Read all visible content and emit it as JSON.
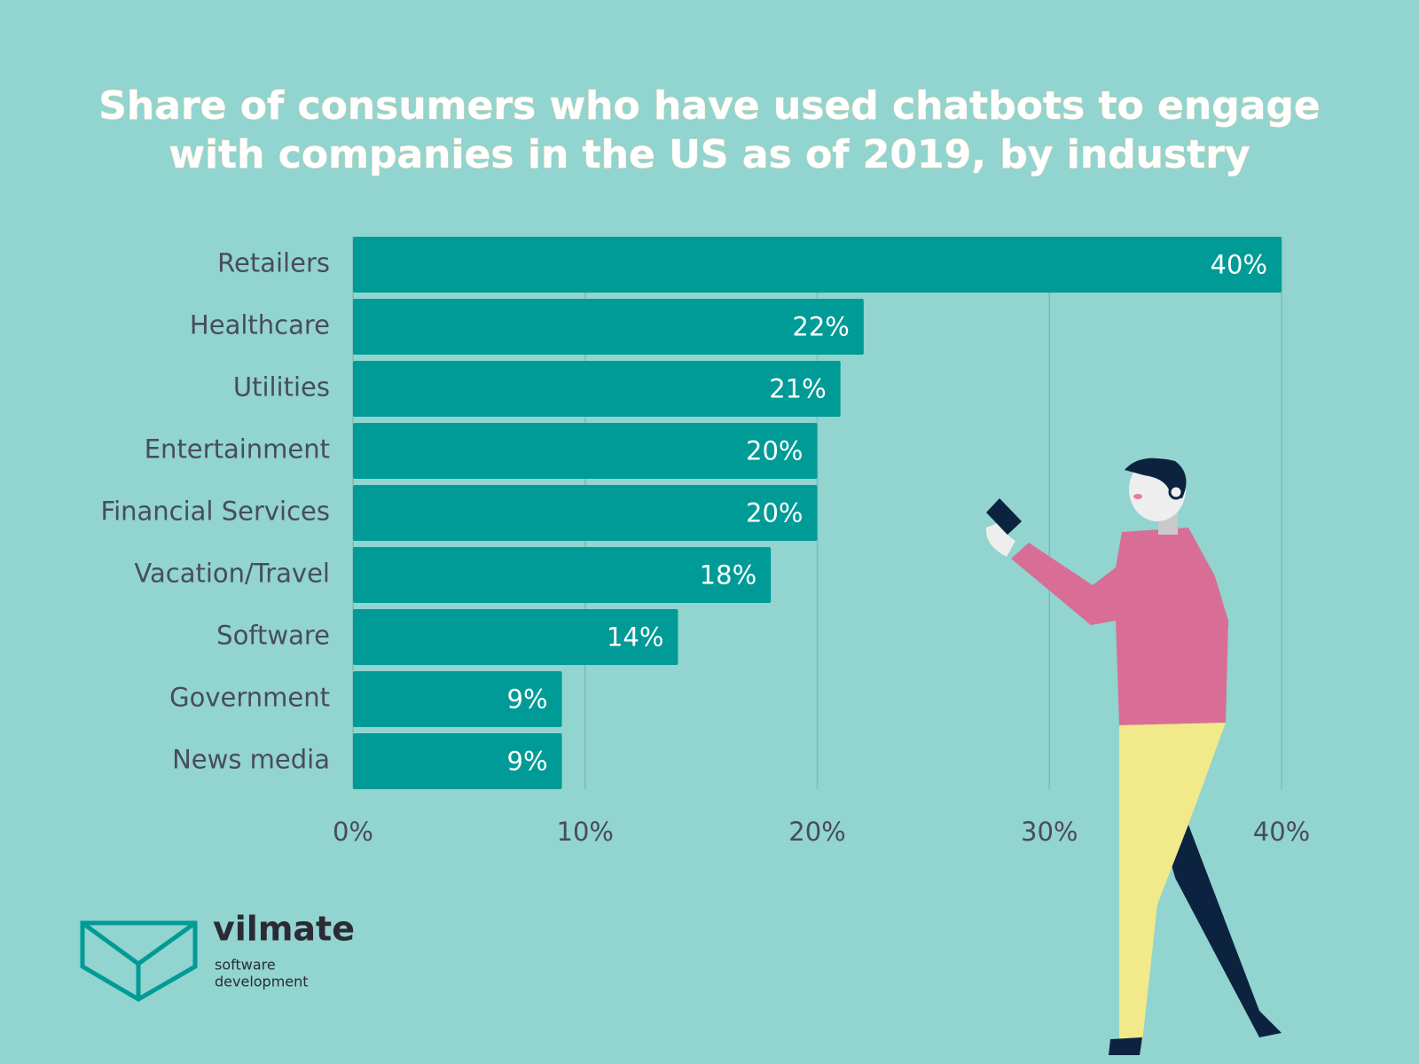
{
  "chart_data": {
    "type": "bar",
    "orientation": "horizontal",
    "title": [
      "Share of consumers who have used chatbots to engage",
      "with companies in the US as of 2019, by industry"
    ],
    "categories": [
      "Retailers",
      "Healthcare",
      "Utilities",
      "Entertainment",
      "Financial Services",
      "Vacation/Travel",
      "Software",
      "Government",
      "News media"
    ],
    "values": [
      40,
      22,
      21,
      20,
      20,
      18,
      14,
      9,
      9
    ],
    "value_labels": [
      "40%",
      "22%",
      "21%",
      "20%",
      "20%",
      "18%",
      "14%",
      "9%",
      "9%"
    ],
    "color": "#009b96",
    "xlim": [
      0,
      40
    ],
    "xticks": [
      {
        "value": 0,
        "label": "0%"
      },
      {
        "value": 10,
        "label": "10%"
      },
      {
        "value": 20,
        "label": "20%"
      },
      {
        "value": 30,
        "label": "30%"
      },
      {
        "value": 40,
        "label": "40%"
      }
    ],
    "grid": true
  },
  "logo": {
    "name": "vilmate",
    "tagline": [
      "software",
      "development"
    ]
  }
}
